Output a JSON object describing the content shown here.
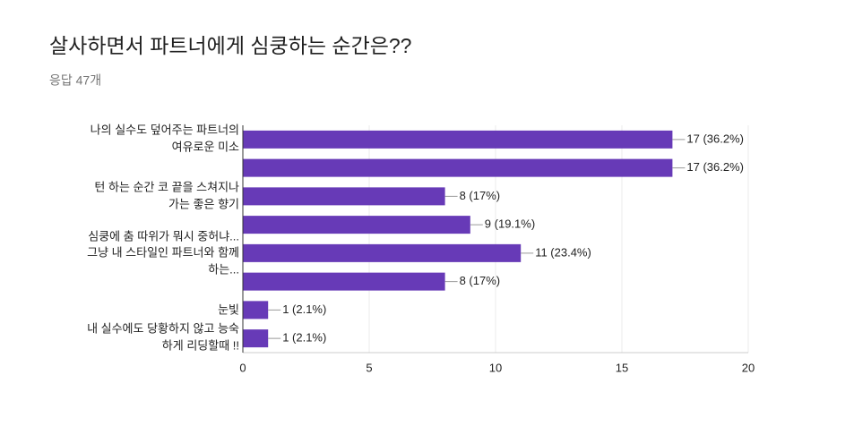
{
  "chart_data": {
    "type": "bar",
    "orientation": "horizontal",
    "title": "살사하면서 파트너에게 심쿵하는 순간은??",
    "subtitle": "응답 47개",
    "categories": [
      [
        "나의 실수도 덮어주는 파트너의",
        "여유로운 미소"
      ],
      null,
      [
        "턴 하는 순간 코 끝을 스쳐지나",
        "가는 좋은 향기"
      ],
      [
        "심쿵에 춤 따위가 뭐시 중허냐..."
      ],
      [
        "그냥 내 스타일인 파트너와 함께",
        "하는..."
      ],
      null,
      [
        "눈빛"
      ],
      [
        "내 실수에도 당황하지 않고 능숙",
        "하게 리딩할때 !!"
      ]
    ],
    "values": [
      17,
      17,
      8,
      9,
      11,
      8,
      1,
      1
    ],
    "value_labels": [
      "17 (36.2%)",
      "17 (36.2%)",
      "8 (17%)",
      "9 (19.1%)",
      "11 (23.4%)",
      "8 (17%)",
      "1 (2.1%)",
      "1 (2.1%)"
    ],
    "color": "#673ab7",
    "xlim": [
      0,
      20
    ],
    "xticks": [
      0,
      5,
      10,
      15,
      20
    ],
    "grid": true
  }
}
